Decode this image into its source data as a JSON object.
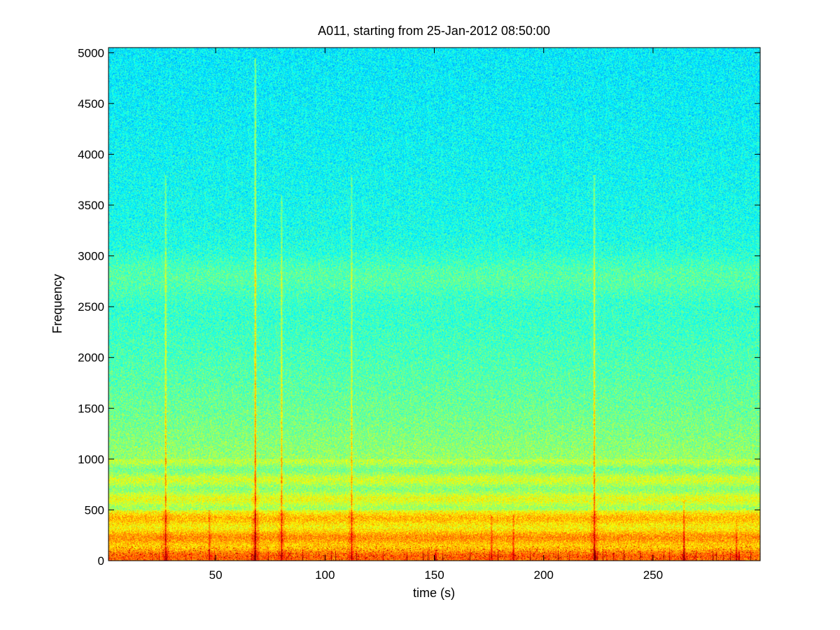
{
  "chart_data": {
    "type": "heatmap",
    "title": "A011, starting from 25-Jan-2012 08:50:00",
    "xlabel": "time (s)",
    "ylabel": "Frequency",
    "xlim": [
      1,
      299
    ],
    "ylim": [
      0,
      5050
    ],
    "xticks": [
      50,
      100,
      150,
      200,
      250
    ],
    "yticks": [
      0,
      500,
      1000,
      1500,
      2000,
      2500,
      3000,
      3500,
      4000,
      4500,
      5000
    ],
    "grid": false,
    "colormap": "jet",
    "colors": {
      "low": "#00e8e8",
      "mid": "#7cff80",
      "high": "#ffee00",
      "peak": "#e00000",
      "frame": "#000000"
    },
    "bands": [
      {
        "freq_from": 0,
        "freq_to": 500,
        "level": "high"
      },
      {
        "freq_from": 2600,
        "freq_to": 3000,
        "level": "elevated"
      }
    ],
    "transients": [
      {
        "time": 27,
        "max_freq": 3800,
        "strength": 0.7
      },
      {
        "time": 47,
        "max_freq": 500,
        "strength": 0.5
      },
      {
        "time": 68,
        "max_freq": 4950,
        "strength": 1.0
      },
      {
        "time": 80,
        "max_freq": 3600,
        "strength": 0.7
      },
      {
        "time": 112,
        "max_freq": 3800,
        "strength": 0.6
      },
      {
        "time": 176,
        "max_freq": 450,
        "strength": 0.5
      },
      {
        "time": 186,
        "max_freq": 450,
        "strength": 0.5
      },
      {
        "time": 223,
        "max_freq": 3800,
        "strength": 0.8
      },
      {
        "time": 264,
        "max_freq": 600,
        "strength": 0.7
      },
      {
        "time": 288,
        "max_freq": 400,
        "strength": 0.5
      }
    ]
  }
}
